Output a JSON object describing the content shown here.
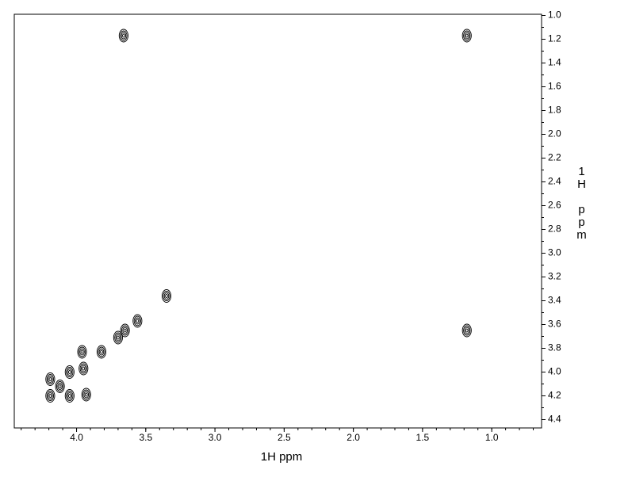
{
  "chart_data": {
    "type": "scatter",
    "xlabel": "1H ppm",
    "ylabel": "1H ppm",
    "color": "#000000",
    "x": [
      3.66,
      1.18,
      3.35,
      1.18,
      3.56,
      3.65,
      3.7,
      3.82,
      3.96,
      3.95,
      4.05,
      4.19,
      4.19,
      4.05,
      3.93,
      4.12
    ],
    "y": [
      1.17,
      1.17,
      3.36,
      3.65,
      3.57,
      3.65,
      3.71,
      3.83,
      3.83,
      3.97,
      4.0,
      4.06,
      4.2,
      4.2,
      4.19,
      4.12
    ],
    "xlim": [
      4.45,
      0.64
    ],
    "ylim": [
      0.99,
      4.47
    ],
    "xticks": [
      {
        "value": 4,
        "label": "4.0"
      },
      3.5,
      {
        "value": 3,
        "label": "3.0"
      },
      2.5,
      {
        "value": 2,
        "label": "2.0"
      },
      1.5,
      {
        "value": 1,
        "label": "1.0"
      }
    ],
    "yticks": [
      {
        "value": 1,
        "label": "1.0"
      },
      1.2,
      1.4,
      1.6,
      1.8,
      {
        "value": 2,
        "label": "2.0"
      },
      2.2,
      2.4,
      2.6,
      2.8,
      {
        "value": 3,
        "label": "3.0"
      },
      3.2,
      3.4,
      3.6,
      3.8,
      {
        "value": 4,
        "label": "4.0"
      },
      4.2,
      4.4
    ],
    "yaxis_side": "right",
    "grid": false
  }
}
